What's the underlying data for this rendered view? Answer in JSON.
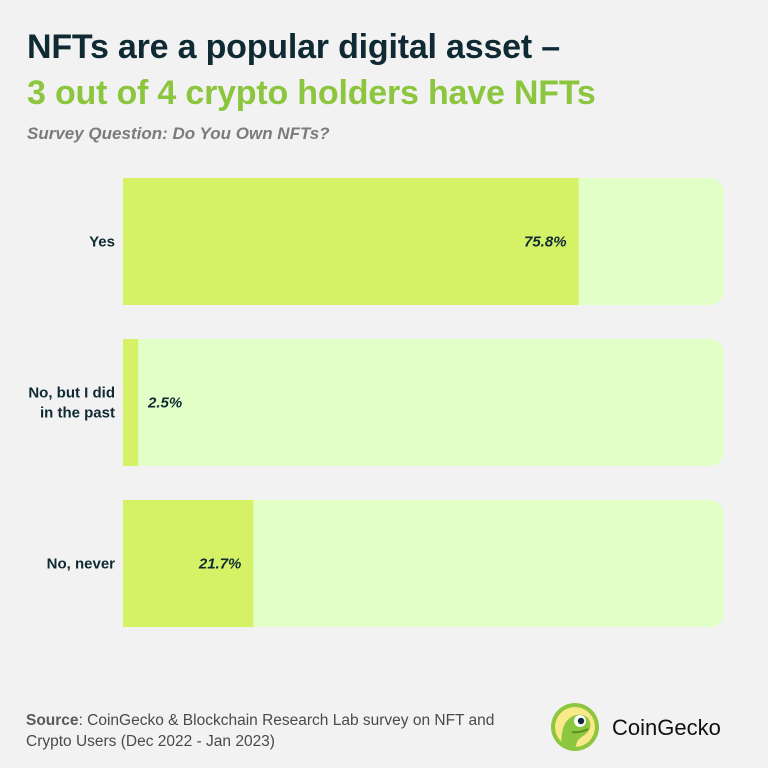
{
  "header": {
    "title_line1": "NFTs are a popular digital asset –",
    "title_line2": "3 out of 4 crypto holders have NFTs",
    "subtitle": "Survey Question: Do You Own NFTs?"
  },
  "chart_data": {
    "type": "bar",
    "orientation": "horizontal",
    "title": "NFTs are a popular digital asset – 3 out of 4 crypto holders have NFTs",
    "subtitle": "Survey Question: Do You Own NFTs?",
    "categories": [
      [
        "Yes"
      ],
      [
        "No, but I did",
        "in the past"
      ],
      [
        "No, never"
      ]
    ],
    "values": [
      75.8,
      2.5,
      21.7
    ],
    "value_labels": [
      "75.8%",
      "2.5%",
      "21.7%"
    ],
    "xlim": [
      0,
      100
    ],
    "grid": false,
    "colors": {
      "bar": "#d5f266",
      "track": "#e1ffc7"
    }
  },
  "footer": {
    "source_label": "Source",
    "source_text": ": CoinGecko & Blockchain Research Lab survey on NFT and Crypto Users (Dec 2022 - Jan 2023)",
    "brand": "CoinGecko",
    "logo_icon": "coingecko-gecko-icon"
  }
}
